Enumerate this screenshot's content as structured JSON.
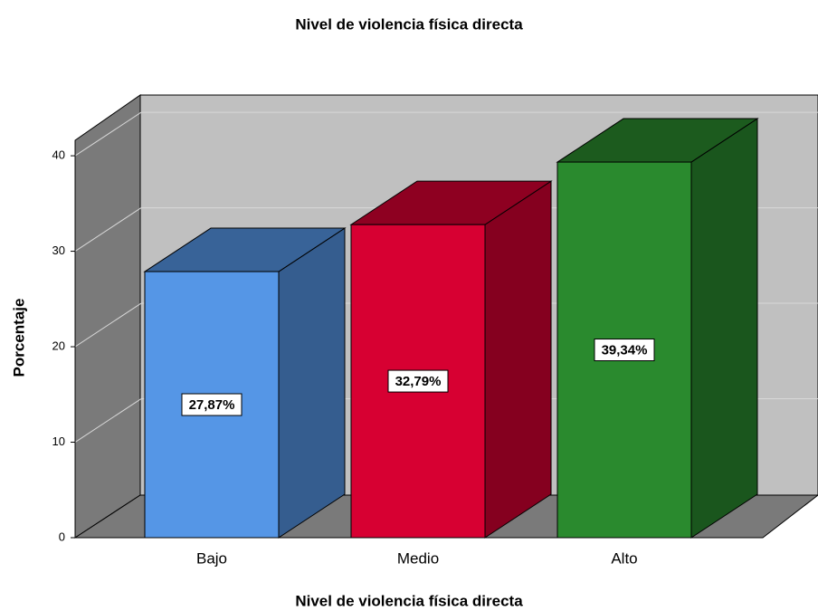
{
  "chart_data": {
    "type": "bar3d",
    "title": "Nivel de violencia física directa",
    "x_label": "Nivel de violencia física directa",
    "y_label": "Porcentaje",
    "categories": [
      "Bajo",
      "Medio",
      "Alto"
    ],
    "values": [
      27.87,
      32.79,
      39.34
    ],
    "value_labels": [
      "27,87%",
      "32,79%",
      "39,34%"
    ],
    "colors": [
      "#5596e6",
      "#d70032",
      "#2a8a2e"
    ],
    "ylim": [
      0,
      42
    ],
    "yticks": [
      0,
      10,
      20,
      30,
      40
    ],
    "grid": true
  }
}
